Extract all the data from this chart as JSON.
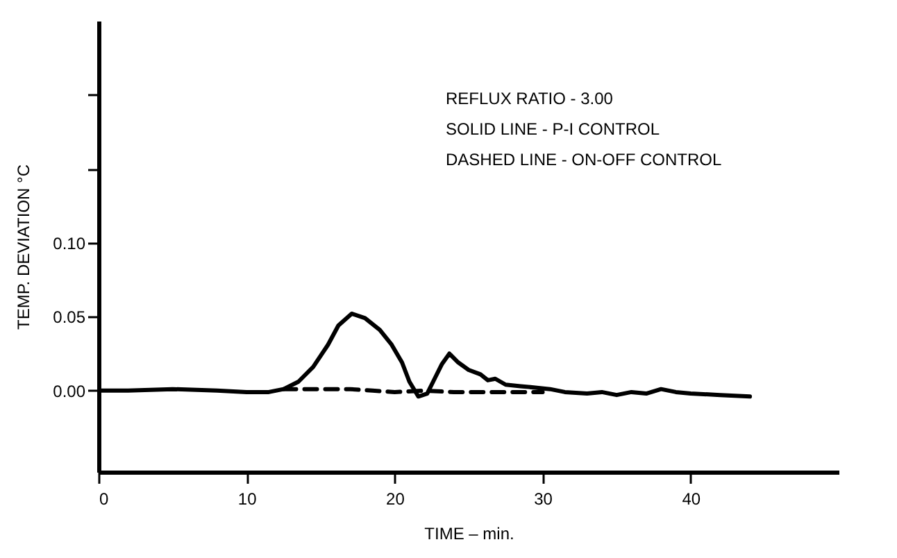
{
  "chart_data": {
    "type": "line",
    "xlabel": "TIME – min.",
    "ylabel": "TEMP. DEVIATION °C",
    "annotations": [
      "REFLUX RATIO - 3.00",
      "SOLID LINE - P-I CONTROL",
      "DASHED LINE - ON-OFF CONTROL"
    ],
    "xlim": [
      0,
      50
    ],
    "ylim": [
      -0.055,
      0.25
    ],
    "xticks": [
      0,
      10,
      20,
      30,
      40
    ],
    "yticks": [
      "0.00",
      {
        "value": 0.05,
        "label": "0.05"
      },
      {
        "value": 0.1,
        "label": "0.10"
      },
      {
        "value": 0.15,
        "label": null
      },
      {
        "value": 0.2,
        "label": null
      }
    ],
    "grid": false,
    "marker": "none",
    "series": [
      {
        "color": "#000000",
        "line_style": "solid",
        "x": [
          0,
          2,
          5,
          8,
          10,
          11.5,
          12.5,
          13.5,
          14.5,
          15.5,
          16.2,
          17.1,
          18,
          19,
          19.8,
          20.5,
          21,
          21.6,
          22.2,
          22.7,
          23.2,
          23.7,
          24.3,
          25,
          25.8,
          26.3,
          26.8,
          27.5,
          28.5,
          29.5,
          30.5,
          31.5,
          33,
          34,
          35,
          36,
          37,
          38,
          39,
          40,
          42,
          44
        ],
        "values": [
          0,
          0,
          0.001,
          0,
          -0.001,
          -0.001,
          0.001,
          0.006,
          0.016,
          0.031,
          0.044,
          0.052,
          0.049,
          0.041,
          0.031,
          0.019,
          0.006,
          -0.004,
          -0.002,
          0.008,
          0.018,
          0.025,
          0.019,
          0.014,
          0.011,
          0.007,
          0.008,
          0.004,
          0.003,
          0.002,
          0.001,
          -0.001,
          -0.002,
          -0.001,
          -0.003,
          -0.001,
          -0.002,
          0.001,
          -0.001,
          -0.002,
          -0.003,
          -0.004
        ]
      },
      {
        "color": "#000000",
        "line_style": "dashed",
        "x": [
          12.5,
          15,
          17,
          18.5,
          20,
          22,
          24,
          26,
          28,
          30
        ],
        "values": [
          0.001,
          0.001,
          0.001,
          0,
          -0.001,
          0,
          -0.001,
          -0.001,
          -0.001,
          -0.001
        ]
      }
    ]
  }
}
